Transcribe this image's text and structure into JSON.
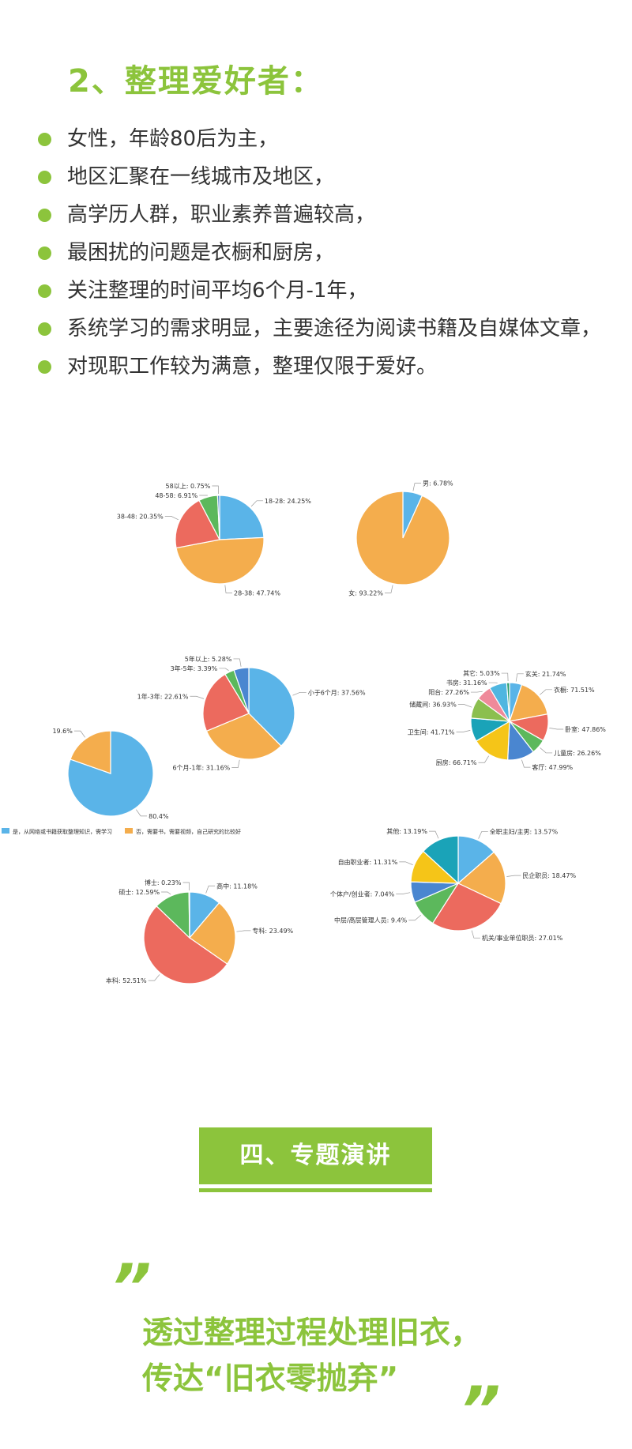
{
  "heading": "2、整理爱好者：",
  "bullets": [
    "女性，年龄80后为主，",
    "地区汇聚在一线城市及地区，",
    "高学历人群，职业素养普遍较高，",
    "最困扰的问题是衣橱和厨房，",
    "关注整理的时间平均6个月-1年，",
    "系统学习的需求明显，主要途径为阅读书籍及自媒体文章，",
    "对现职工作较为满意，整理仅限于爱好。"
  ],
  "colors": {
    "accent": "#8cc43c"
  },
  "chart_data": [
    {
      "type": "pie",
      "id": "age",
      "slices": [
        {
          "label": "18-28",
          "value": 24.25,
          "color": "#5ab4e8"
        },
        {
          "label": "28-38",
          "value": 47.74,
          "color": "#f4ad4d"
        },
        {
          "label": "38-48",
          "value": 20.35,
          "color": "#ec6a5e"
        },
        {
          "label": "48-58",
          "value": 6.91,
          "color": "#5cb85c"
        },
        {
          "label": "58以上",
          "value": 0.75,
          "color": "#4a86d0"
        }
      ]
    },
    {
      "type": "pie",
      "id": "gender",
      "slices": [
        {
          "label": "男",
          "value": 6.78,
          "color": "#5ab4e8"
        },
        {
          "label": "女",
          "value": 93.22,
          "color": "#f4ad4d"
        }
      ]
    },
    {
      "type": "pie",
      "id": "duration",
      "slices": [
        {
          "label": "小于6个月",
          "value": 37.56,
          "color": "#5ab4e8"
        },
        {
          "label": "6个月-1年",
          "value": 31.16,
          "color": "#f4ad4d"
        },
        {
          "label": "1年-3年",
          "value": 22.61,
          "color": "#ec6a5e"
        },
        {
          "label": "3年-5年",
          "value": 3.39,
          "color": "#5cb85c"
        },
        {
          "label": "5年以上",
          "value": 5.28,
          "color": "#4a86d0"
        }
      ]
    },
    {
      "type": "pie",
      "id": "rooms",
      "slices": [
        {
          "label": "玄关",
          "value": 21.74,
          "color": "#5ab4e8"
        },
        {
          "label": "衣橱",
          "value": 71.51,
          "color": "#f4ad4d"
        },
        {
          "label": "卧室",
          "value": 47.86,
          "color": "#ec6a5e"
        },
        {
          "label": "儿童房",
          "value": 26.26,
          "color": "#5cb85c"
        },
        {
          "label": "客厅",
          "value": 47.99,
          "color": "#4a86d0"
        },
        {
          "label": "厨房",
          "value": 66.71,
          "color": "#f5c518"
        },
        {
          "label": "卫生间",
          "value": 41.71,
          "color": "#1aa3b8"
        },
        {
          "label": "储藏间",
          "value": 36.93,
          "color": "#8bbf4f"
        },
        {
          "label": "阳台",
          "value": 27.26,
          "color": "#ef8a9a"
        },
        {
          "label": "书房",
          "value": 31.16,
          "color": "#4fb6e0"
        },
        {
          "label": "其它",
          "value": 5.03,
          "color": "#2a9d6a"
        }
      ]
    },
    {
      "type": "pie",
      "id": "study",
      "legend": [
        "是，从网络或书籍获取整理知识，需学习",
        "否，需要书，需要视频，自己研究的比较好"
      ],
      "slices": [
        {
          "label": "",
          "value": 80.4,
          "color": "#5ab4e8"
        },
        {
          "label": "",
          "value": 19.6,
          "color": "#f4ad4d"
        }
      ]
    },
    {
      "type": "pie",
      "id": "education",
      "slices": [
        {
          "label": "高中",
          "value": 11.18,
          "color": "#5ab4e8"
        },
        {
          "label": "专科",
          "value": 23.49,
          "color": "#f4ad4d"
        },
        {
          "label": "本科",
          "value": 52.51,
          "color": "#ec6a5e"
        },
        {
          "label": "硕士",
          "value": 12.59,
          "color": "#5cb85c"
        },
        {
          "label": "博士",
          "value": 0.23,
          "color": "#4a86d0"
        }
      ]
    },
    {
      "type": "pie",
      "id": "occupation",
      "slices": [
        {
          "label": "全职主妇/主男",
          "value": 13.57,
          "color": "#5ab4e8"
        },
        {
          "label": "民企职员",
          "value": 18.47,
          "color": "#f4ad4d"
        },
        {
          "label": "机关/事业单位职员",
          "value": 27.01,
          "color": "#ec6a5e"
        },
        {
          "label": "中层/高层管理人员",
          "value": 9.4,
          "color": "#5cb85c"
        },
        {
          "label": "个体户/创业者",
          "value": 7.04,
          "color": "#4a86d0"
        },
        {
          "label": "自由职业者",
          "value": 11.31,
          "color": "#f5c518"
        },
        {
          "label": "其他",
          "value": 13.19,
          "color": "#1aa3b8"
        }
      ]
    }
  ],
  "section": {
    "title": "四、专题演讲"
  },
  "quote": {
    "open_mark": "”",
    "close_mark": "”",
    "line1": "透过整理过程处理旧衣，",
    "line2": "传达“旧衣零抛弃”"
  }
}
